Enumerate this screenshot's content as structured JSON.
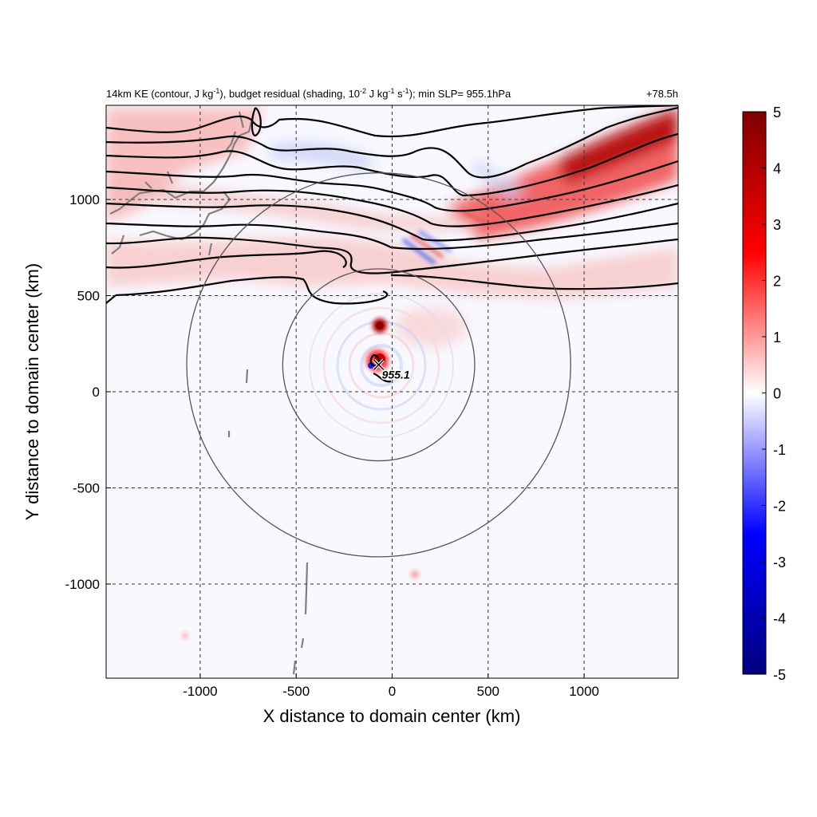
{
  "chart_data": {
    "type": "heatmap",
    "title_left": "14km KE (contour, J kg-1), budget residual (shading, 10-2 J kg-1 s-1); min SLP= 955.1hPa",
    "title_parts": {
      "p1": "14km KE (contour, J kg",
      "sup1": "-1",
      "p2": "), budget residual (shading, 10",
      "sup2": "-2",
      "p3": " J kg",
      "sup3": "-1",
      "p4": " s",
      "sup4": "-1",
      "p5": "); min SLP= 955.1hPa"
    },
    "title_right": "+78.5h",
    "xlabel": "X distance to domain center (km)",
    "ylabel": "Y distance to domain center (km)",
    "xlim": [
      -1490,
      1490
    ],
    "ylim": [
      -1490,
      1490
    ],
    "xticks": [
      -1000,
      -500,
      0,
      500,
      1000
    ],
    "yticks": [
      -1000,
      -500,
      0,
      500,
      1000
    ],
    "grid": true,
    "colorbar": {
      "min": -5,
      "max": 5,
      "ticks": [
        5,
        4,
        3,
        2,
        1,
        0,
        -1,
        -2,
        -3,
        -4,
        -5
      ],
      "colors": [
        "#00007f",
        "#0000ff",
        "#ffffff",
        "#ff0000",
        "#7f0000"
      ]
    },
    "storm_center": {
      "x": -70,
      "y": 140,
      "label": "955.1"
    },
    "range_rings_km": [
      500,
      1000
    ],
    "shading_features": [
      {
        "x": 1250,
        "y": 1350,
        "value": 5
      },
      {
        "x": 900,
        "y": 1200,
        "value": 4
      },
      {
        "x": 600,
        "y": 1050,
        "value": 3
      },
      {
        "x": -80,
        "y": 360,
        "value": 5
      },
      {
        "x": -80,
        "y": 170,
        "value": 4
      },
      {
        "x": -110,
        "y": 140,
        "value": -4
      },
      {
        "x": -1250,
        "y": 1400,
        "value": 2
      },
      {
        "x": 150,
        "y": -950,
        "value": 2
      }
    ]
  }
}
